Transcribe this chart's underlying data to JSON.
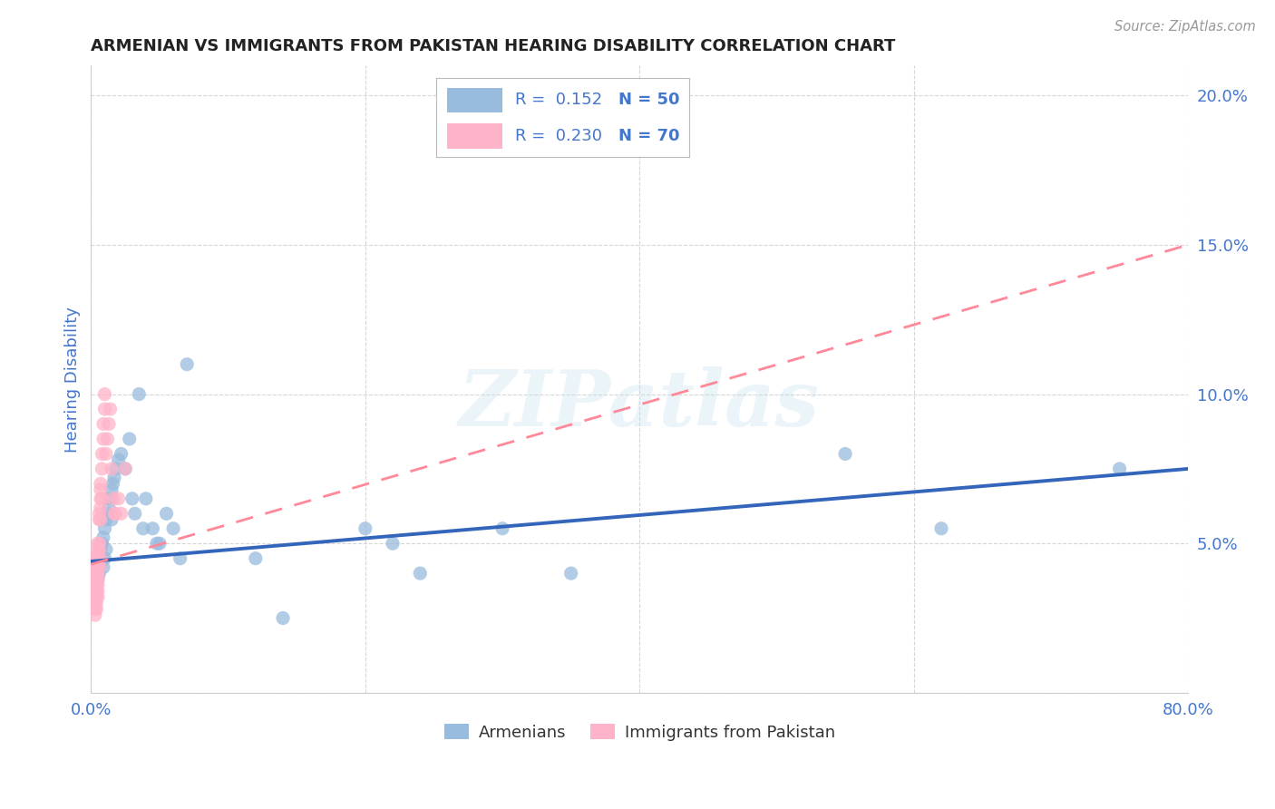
{
  "title": "ARMENIAN VS IMMIGRANTS FROM PAKISTAN HEARING DISABILITY CORRELATION CHART",
  "source": "Source: ZipAtlas.com",
  "ylabel": "Hearing Disability",
  "watermark": "ZIPatlas",
  "blue_color": "#99BBDD",
  "blue_edge_color": "#88AACC",
  "pink_color": "#FFB3C8",
  "pink_edge_color": "#FF99B8",
  "blue_line_color": "#3366BB",
  "pink_line_color": "#FF8899",
  "label_color": "#4477CC",
  "title_color": "#222222",
  "source_color": "#999999",
  "grid_color": "#CCCCCC",
  "background_color": "#FFFFFF",
  "xlim": [
    0.0,
    0.8
  ],
  "ylim": [
    0.0,
    0.21
  ],
  "x_ticks": [
    0.0,
    0.2,
    0.4,
    0.6,
    0.8
  ],
  "y_ticks": [
    0.0,
    0.05,
    0.1,
    0.15,
    0.2
  ],
  "x_tick_labels": [
    "0.0%",
    "",
    "",
    "",
    "80.0%"
  ],
  "y_tick_labels": [
    "",
    "5.0%",
    "10.0%",
    "15.0%",
    "20.0%"
  ],
  "legend_blue_text": "R =  0.152   N = 50",
  "legend_pink_text": "R =  0.230   N = 70",
  "marker_size": 120,
  "armenians_x": [
    0.002,
    0.003,
    0.004,
    0.004,
    0.005,
    0.005,
    0.006,
    0.006,
    0.007,
    0.008,
    0.009,
    0.009,
    0.01,
    0.01,
    0.011,
    0.011,
    0.012,
    0.013,
    0.014,
    0.015,
    0.015,
    0.016,
    0.017,
    0.018,
    0.02,
    0.022,
    0.025,
    0.028,
    0.03,
    0.032,
    0.035,
    0.038,
    0.04,
    0.045,
    0.048,
    0.05,
    0.055,
    0.06,
    0.065,
    0.07,
    0.12,
    0.14,
    0.2,
    0.22,
    0.24,
    0.3,
    0.35,
    0.55,
    0.62,
    0.75
  ],
  "armenians_y": [
    0.04,
    0.038,
    0.042,
    0.036,
    0.044,
    0.038,
    0.046,
    0.04,
    0.048,
    0.05,
    0.052,
    0.042,
    0.055,
    0.045,
    0.058,
    0.048,
    0.06,
    0.062,
    0.065,
    0.068,
    0.058,
    0.07,
    0.072,
    0.075,
    0.078,
    0.08,
    0.075,
    0.085,
    0.065,
    0.06,
    0.1,
    0.055,
    0.065,
    0.055,
    0.05,
    0.05,
    0.06,
    0.055,
    0.045,
    0.11,
    0.045,
    0.025,
    0.055,
    0.05,
    0.04,
    0.055,
    0.04,
    0.08,
    0.055,
    0.075
  ],
  "pakistan_x": [
    0.001,
    0.001,
    0.001,
    0.002,
    0.002,
    0.002,
    0.002,
    0.002,
    0.002,
    0.002,
    0.003,
    0.003,
    0.003,
    0.003,
    0.003,
    0.003,
    0.003,
    0.003,
    0.003,
    0.003,
    0.004,
    0.004,
    0.004,
    0.004,
    0.004,
    0.004,
    0.004,
    0.004,
    0.004,
    0.004,
    0.005,
    0.005,
    0.005,
    0.005,
    0.005,
    0.005,
    0.005,
    0.005,
    0.005,
    0.005,
    0.006,
    0.006,
    0.006,
    0.006,
    0.006,
    0.006,
    0.006,
    0.007,
    0.007,
    0.007,
    0.007,
    0.007,
    0.008,
    0.008,
    0.008,
    0.009,
    0.009,
    0.01,
    0.01,
    0.011,
    0.012,
    0.013,
    0.014,
    0.015,
    0.016,
    0.017,
    0.018,
    0.02,
    0.022,
    0.025
  ],
  "pakistan_y": [
    0.04,
    0.038,
    0.036,
    0.042,
    0.04,
    0.038,
    0.036,
    0.034,
    0.032,
    0.03,
    0.044,
    0.042,
    0.04,
    0.038,
    0.036,
    0.034,
    0.032,
    0.03,
    0.028,
    0.026,
    0.046,
    0.044,
    0.042,
    0.04,
    0.038,
    0.036,
    0.034,
    0.032,
    0.03,
    0.028,
    0.05,
    0.048,
    0.046,
    0.044,
    0.042,
    0.04,
    0.038,
    0.036,
    0.034,
    0.032,
    0.06,
    0.058,
    0.05,
    0.048,
    0.046,
    0.044,
    0.042,
    0.07,
    0.068,
    0.065,
    0.062,
    0.058,
    0.08,
    0.075,
    0.065,
    0.09,
    0.085,
    0.1,
    0.095,
    0.08,
    0.085,
    0.09,
    0.095,
    0.075,
    0.065,
    0.06,
    0.06,
    0.065,
    0.06,
    0.075
  ]
}
